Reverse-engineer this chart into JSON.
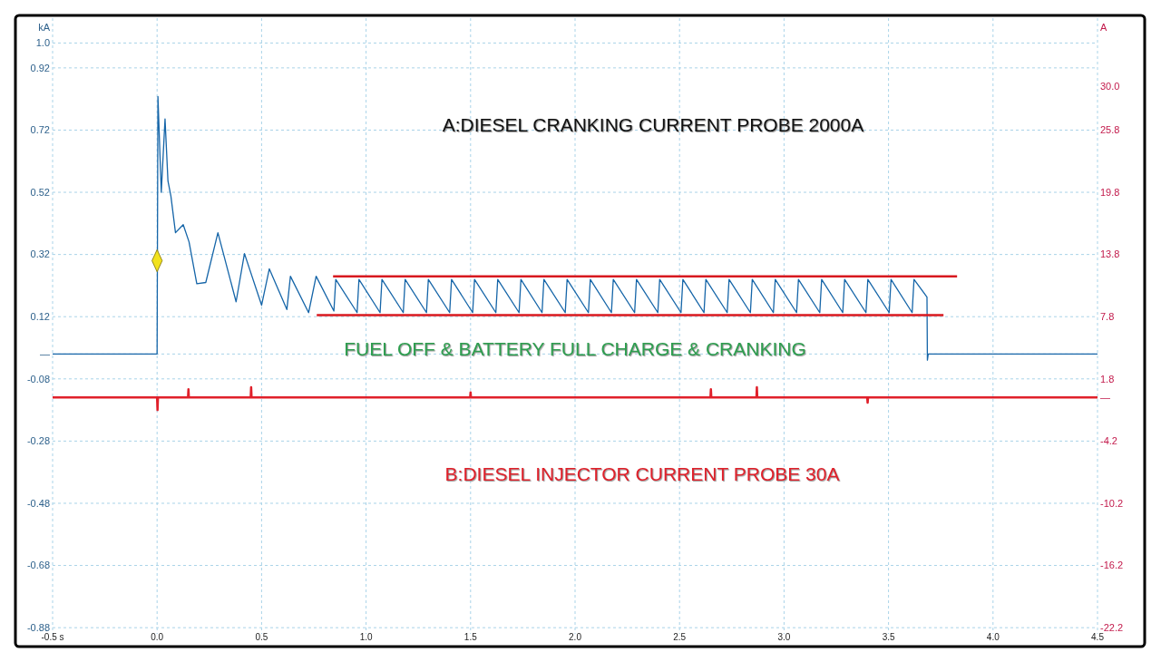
{
  "chart_data": {
    "type": "line",
    "annotations": [
      "A:DIESEL CRANKING CURRENT PROBE 2000A",
      "FUEL OFF & BATTERY FULL CHARGE & CRANKING",
      "B:DIESEL INJECTOR CURRENT PROBE 30A"
    ],
    "ylabel": "kA",
    "y2label": "A",
    "xlim": [
      -0.5,
      4.5
    ],
    "xticks": [
      {
        "value": -0.5,
        "label": "-0.5 s"
      },
      {
        "value": 0,
        "label": "0.0"
      },
      0.5,
      {
        "value": 1,
        "label": "1.0"
      },
      1.5,
      {
        "value": 2,
        "label": "2.0"
      },
      2.5,
      {
        "value": 3,
        "label": "3.0"
      },
      3.5,
      {
        "value": 4,
        "label": "4.0"
      },
      4.5
    ],
    "ylim": [
      -0.9,
      1.08
    ],
    "yticks": [
      {
        "value": 1,
        "label": "1.0"
      },
      0.92,
      0.72,
      0.52,
      0.32,
      0.12,
      {
        "value": 0,
        "label": "—"
      },
      -0.08,
      -0.28,
      -0.48,
      -0.68,
      -0.88
    ],
    "y2lim": [
      -22.8,
      36.6
    ],
    "y2ticks": [
      {
        "value": 30,
        "label": "30.0"
      },
      25.8,
      19.8,
      13.8,
      7.8,
      1.8,
      {
        "value": 0,
        "label": "—"
      },
      -4.2,
      -10.2,
      -16.2,
      -22.2
    ],
    "grid": true,
    "series": [
      {
        "color": "#1565a8",
        "x": [
          -0.5,
          0.0,
          0.004,
          0.02,
          0.038,
          0.052,
          0.066,
          0.088,
          0.125,
          0.153,
          0.19,
          0.233,
          0.291,
          0.378,
          0.418,
          0.5,
          0.537,
          0.621,
          0.638,
          0.725,
          0.761,
          0.846,
          0.855,
          0.957,
          0.966,
          1.067,
          1.076,
          1.178,
          1.187,
          1.289,
          1.298,
          1.4,
          1.409,
          1.51,
          1.519,
          1.621,
          1.63,
          1.732,
          1.741,
          1.842,
          1.851,
          1.953,
          1.962,
          2.064,
          2.073,
          2.174,
          2.183,
          2.285,
          2.294,
          2.396,
          2.405,
          2.507,
          2.516,
          2.617,
          2.626,
          2.728,
          2.737,
          2.839,
          2.848,
          2.949,
          2.958,
          3.06,
          3.069,
          3.171,
          3.18,
          3.281,
          3.29,
          3.392,
          3.401,
          3.503,
          3.512,
          3.613,
          3.622,
          3.684,
          3.686,
          3.69,
          4.5
        ],
        "values": [
          0,
          0,
          0.828,
          0.52,
          0.756,
          0.556,
          0.508,
          0.39,
          0.416,
          0.36,
          0.226,
          0.23,
          0.39,
          0.168,
          0.323,
          0.157,
          0.274,
          0.143,
          0.25,
          0.133,
          0.25,
          0.138,
          0.24,
          0.133,
          0.24,
          0.133,
          0.24,
          0.133,
          0.24,
          0.133,
          0.24,
          0.133,
          0.24,
          0.133,
          0.24,
          0.133,
          0.24,
          0.133,
          0.24,
          0.133,
          0.24,
          0.133,
          0.24,
          0.133,
          0.24,
          0.133,
          0.24,
          0.133,
          0.24,
          0.133,
          0.24,
          0.133,
          0.24,
          0.133,
          0.24,
          0.133,
          0.24,
          0.133,
          0.24,
          0.133,
          0.24,
          0.133,
          0.24,
          0.133,
          0.24,
          0.133,
          0.24,
          0.133,
          0.24,
          0.133,
          0.24,
          0.133,
          0.24,
          0.183,
          -0.02,
          0,
          0
        ]
      },
      {
        "axis": "y2",
        "color": "#e0202a",
        "x": [
          -0.5,
          0.0,
          0.002,
          0.004,
          0.148,
          0.15,
          0.152,
          0.448,
          0.45,
          0.452,
          1.498,
          1.5,
          1.502,
          2.648,
          2.65,
          2.652,
          2.868,
          2.87,
          2.872,
          3.398,
          3.4,
          3.402,
          4.5
        ],
        "values": [
          0,
          0,
          -1.2,
          0,
          0,
          0.8,
          0,
          0,
          1.0,
          0,
          0,
          0.5,
          0,
          0,
          0.8,
          0,
          0,
          1.0,
          0,
          0,
          -0.5,
          0,
          0
        ]
      },
      {
        "color": "#d8191f",
        "x": [
          0.842,
          3.828
        ],
        "values": [
          0.25,
          0.25
        ]
      },
      {
        "color": "#d8191f",
        "x": [
          0.764,
          3.763
        ],
        "values": [
          0.125,
          0.125
        ]
      },
      {
        "type": "scatter",
        "marker": "diamond",
        "color": "#f2e21d",
        "x": [
          0.0
        ],
        "values": [
          0.3
        ]
      }
    ]
  }
}
